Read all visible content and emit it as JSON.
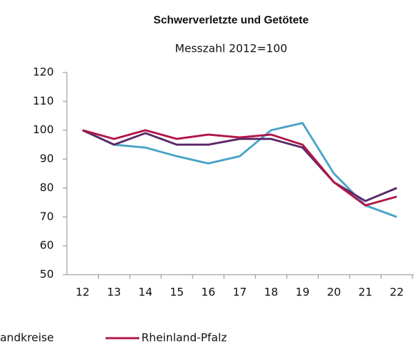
{
  "chart_data": {
    "type": "line",
    "title": "Schwerverletzte und Getötete",
    "subtitle": "Messzahl 2012=100",
    "categories": [
      "12",
      "13",
      "14",
      "15",
      "16",
      "17",
      "18",
      "19",
      "20",
      "21",
      "22"
    ],
    "series": [
      {
        "color": "#4aa3c6",
        "values": [
          100,
          95,
          94,
          91,
          88.5,
          91,
          100,
          102.5,
          85,
          74,
          70
        ]
      },
      {
        "name": "andkreise",
        "color": "#5a2a68",
        "values": [
          100,
          95,
          99,
          95,
          95,
          97,
          97,
          94,
          82,
          75.5,
          80
        ]
      },
      {
        "name": "Rheinland-Pfalz",
        "color": "#b0174a",
        "values": [
          100,
          97,
          100,
          97,
          98.5,
          97.5,
          98.5,
          95,
          82,
          74,
          77
        ]
      }
    ],
    "ylim": [
      50,
      120
    ],
    "yticks": [
      50,
      60,
      70,
      80,
      90,
      100,
      110,
      120
    ],
    "grid": false
  }
}
